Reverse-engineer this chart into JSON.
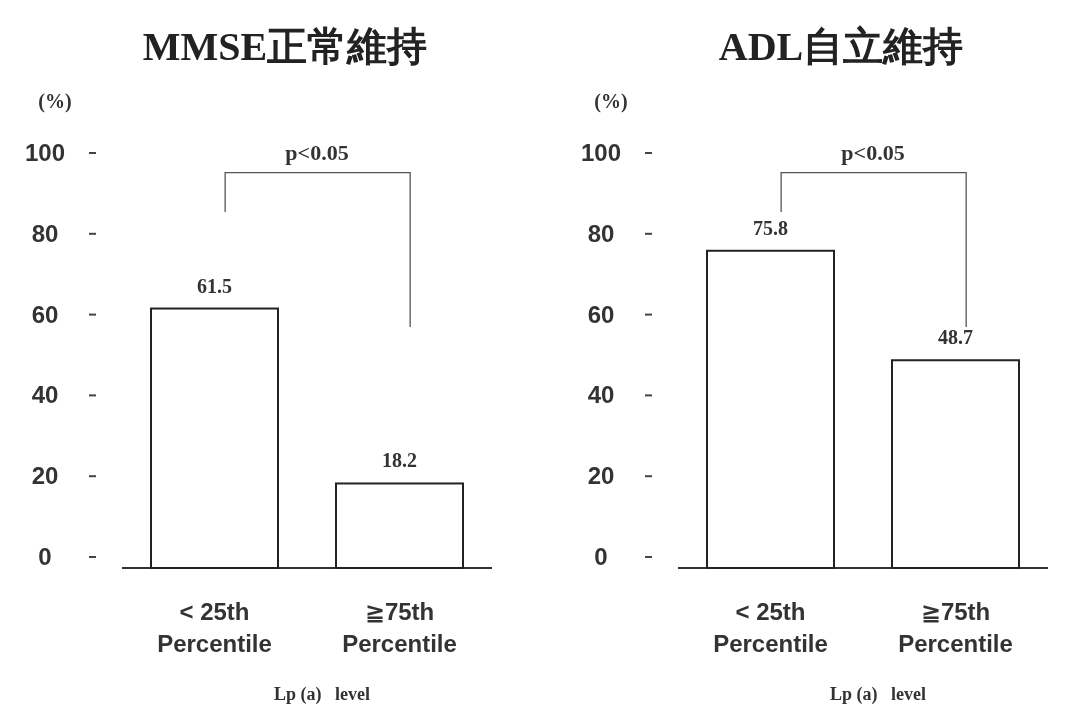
{
  "chart_data": [
    {
      "type": "bar",
      "title": "MMSE正常維持",
      "ylabel": "(%)",
      "xlabel": "Lp (a)   level",
      "categories": [
        "< 25th\nPercentile",
        "≧75th\nPercentile"
      ],
      "values": [
        61.5,
        18.2
      ],
      "color": "#ffffff",
      "ylim": [
        0,
        100
      ],
      "yticks": [
        0,
        20,
        40,
        60,
        80,
        100
      ],
      "data_labels": true,
      "annotations": [
        "p<0.05"
      ]
    },
    {
      "type": "bar",
      "title": "ADL自立維持",
      "ylabel": "(%)",
      "xlabel": "Lp (a)   level",
      "categories": [
        "< 25th\nPercentile",
        "≧75th\nPercentile"
      ],
      "values": [
        75.8,
        48.7
      ],
      "color": "#ffffff",
      "ylim": [
        0,
        100
      ],
      "yticks": [
        0,
        20,
        40,
        60,
        80,
        100
      ],
      "data_labels": true,
      "annotations": [
        "p<0.05"
      ]
    }
  ]
}
